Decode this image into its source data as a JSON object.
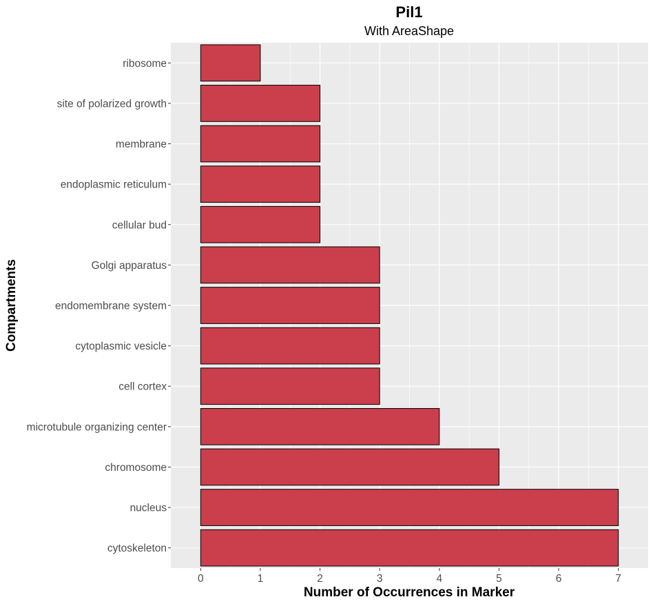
{
  "chart_data": {
    "type": "bar",
    "orientation": "horizontal",
    "title": "Pil1",
    "subtitle": "With AreaShape",
    "xlabel": "Number of Occurrences in Marker",
    "ylabel": "Compartments",
    "xlim": [
      -0.5,
      7.5
    ],
    "x_ticks": [
      0,
      1,
      2,
      3,
      4,
      5,
      6,
      7
    ],
    "grid": true,
    "legend": "none",
    "bar_color": "#cb3e4c",
    "bar_border_color": "#000000",
    "panel_background": "#ebebeb",
    "categories": [
      "ribosome",
      "site of polarized growth",
      "membrane",
      "endoplasmic reticulum",
      "cellular bud",
      "Golgi apparatus",
      "endomembrane system",
      "cytoplasmic vesicle",
      "cell cortex",
      "microtubule organizing center",
      "chromosome",
      "nucleus",
      "cytoskeleton"
    ],
    "values": [
      1,
      2,
      2,
      2,
      2,
      3,
      3,
      3,
      3,
      4,
      5,
      7,
      7
    ]
  }
}
